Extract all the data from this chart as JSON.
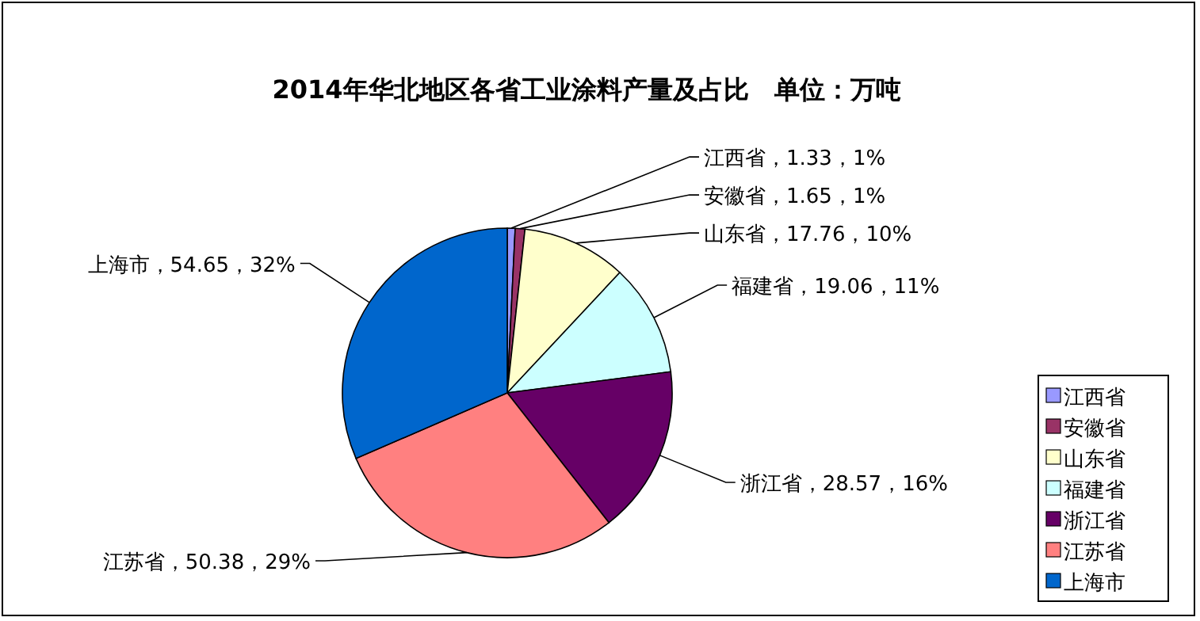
{
  "chart_data": {
    "type": "pie",
    "title": "2014年华北地区各省工业涂料产量及占比　单位：万吨",
    "categories": [
      "江西省",
      "安徽省",
      "山东省",
      "福建省",
      "浙江省",
      "江苏省",
      "上海市"
    ],
    "values": [
      1.33,
      1.65,
      17.76,
      19.06,
      28.57,
      50.38,
      54.65
    ],
    "colors": [
      "#9999ff",
      "#993366",
      "#ffffcc",
      "#ccffff",
      "#660066",
      "#ff8080",
      "#0066cc"
    ],
    "value_labels": [
      "江西省，1.33，1%",
      "安徽省，1.65，1%",
      "山东省，17.76，10%",
      "福建省，19.06，11%",
      "浙江省，28.57，16%",
      "江苏省，50.38，29%",
      "上海市，54.65，32%"
    ],
    "legend": "right"
  }
}
